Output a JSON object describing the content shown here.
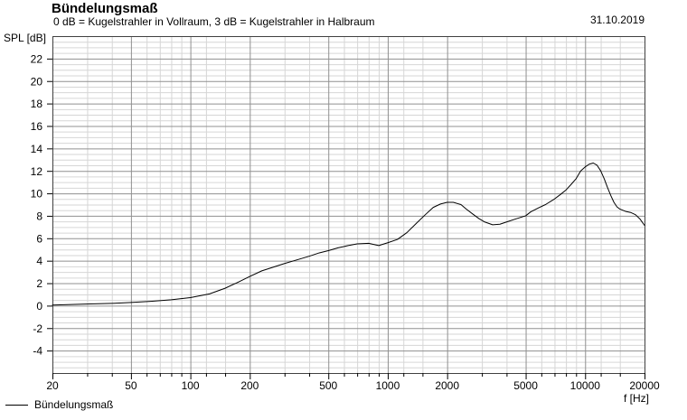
{
  "header": {
    "title": "Bündelungsmaß",
    "subtitle": "0 dB = Kugelstrahler in Vollraum, 3 dB = Kugelstrahler in Halbraum",
    "date": "31.10.2019"
  },
  "axes": {
    "y_label": "SPL [dB]",
    "x_label": "f [Hz]",
    "y_tick_values": [
      22,
      20,
      18,
      16,
      14,
      12,
      10,
      8,
      6,
      4,
      2,
      0,
      -2,
      -4
    ],
    "y_tick_labels": [
      "22",
      "20",
      "18",
      "16",
      "14",
      "12",
      "10",
      "8",
      "6",
      "4",
      "2",
      "0",
      "-2",
      "-4"
    ],
    "y_minor_step": 0.5,
    "x_tick_values": [
      20,
      50,
      100,
      200,
      500,
      1000,
      2000,
      5000,
      10000,
      20000
    ],
    "x_tick_labels": [
      "20",
      "50",
      "100",
      "200",
      "500",
      "1000",
      "2000",
      "5000",
      "10000",
      "20000"
    ],
    "x_major_multipliers": [
      1,
      2,
      5
    ],
    "x_minor_multipliers": [
      1.2,
      1.5,
      3,
      4,
      6,
      7,
      8,
      9
    ]
  },
  "legend": {
    "items": [
      {
        "label": "Bündelungsmaß",
        "color": "#000000"
      }
    ]
  },
  "colors": {
    "background": "#ffffff",
    "frame": "#404040",
    "grid_major": "#909090",
    "grid_minor": "#d6d6d6",
    "curve": "#000000",
    "text": "#000000"
  },
  "chart_data": {
    "type": "line",
    "title": "Bündelungsmaß",
    "xlabel": "f [Hz]",
    "ylabel": "SPL [dB]",
    "x_scale": "log",
    "grid": true,
    "legend_position": "bottom-left",
    "xlim": [
      20,
      20000
    ],
    "ylim": [
      -6,
      24
    ],
    "series": [
      {
        "name": "Bündelungsmaß",
        "color": "#000000",
        "points": [
          [
            20,
            0.05
          ],
          [
            25,
            0.1
          ],
          [
            31,
            0.15
          ],
          [
            40,
            0.2
          ],
          [
            50,
            0.28
          ],
          [
            63,
            0.38
          ],
          [
            80,
            0.52
          ],
          [
            100,
            0.72
          ],
          [
            125,
            1.05
          ],
          [
            150,
            1.55
          ],
          [
            175,
            2.1
          ],
          [
            200,
            2.6
          ],
          [
            230,
            3.1
          ],
          [
            260,
            3.4
          ],
          [
            300,
            3.75
          ],
          [
            350,
            4.1
          ],
          [
            400,
            4.4
          ],
          [
            450,
            4.7
          ],
          [
            500,
            4.9
          ],
          [
            560,
            5.15
          ],
          [
            630,
            5.35
          ],
          [
            700,
            5.5
          ],
          [
            800,
            5.55
          ],
          [
            900,
            5.35
          ],
          [
            1000,
            5.6
          ],
          [
            1120,
            5.9
          ],
          [
            1250,
            6.5
          ],
          [
            1400,
            7.35
          ],
          [
            1550,
            8.1
          ],
          [
            1700,
            8.75
          ],
          [
            1850,
            9.05
          ],
          [
            2000,
            9.2
          ],
          [
            2150,
            9.2
          ],
          [
            2350,
            9.0
          ],
          [
            2500,
            8.6
          ],
          [
            2700,
            8.15
          ],
          [
            2900,
            7.75
          ],
          [
            3100,
            7.45
          ],
          [
            3400,
            7.2
          ],
          [
            3700,
            7.25
          ],
          [
            4000,
            7.45
          ],
          [
            4500,
            7.75
          ],
          [
            5000,
            8.0
          ],
          [
            5300,
            8.35
          ],
          [
            5800,
            8.7
          ],
          [
            6300,
            9.0
          ],
          [
            7000,
            9.5
          ],
          [
            7500,
            9.9
          ],
          [
            8000,
            10.3
          ],
          [
            8500,
            10.8
          ],
          [
            9000,
            11.3
          ],
          [
            9500,
            12.0
          ],
          [
            10000,
            12.35
          ],
          [
            10500,
            12.6
          ],
          [
            11000,
            12.7
          ],
          [
            11500,
            12.5
          ],
          [
            12000,
            12.0
          ],
          [
            12500,
            11.3
          ],
          [
            13000,
            10.5
          ],
          [
            13500,
            9.8
          ],
          [
            14000,
            9.2
          ],
          [
            14500,
            8.8
          ],
          [
            15000,
            8.6
          ],
          [
            16000,
            8.4
          ],
          [
            17000,
            8.3
          ],
          [
            18000,
            8.1
          ],
          [
            19000,
            7.7
          ],
          [
            20000,
            7.15
          ]
        ]
      }
    ]
  }
}
